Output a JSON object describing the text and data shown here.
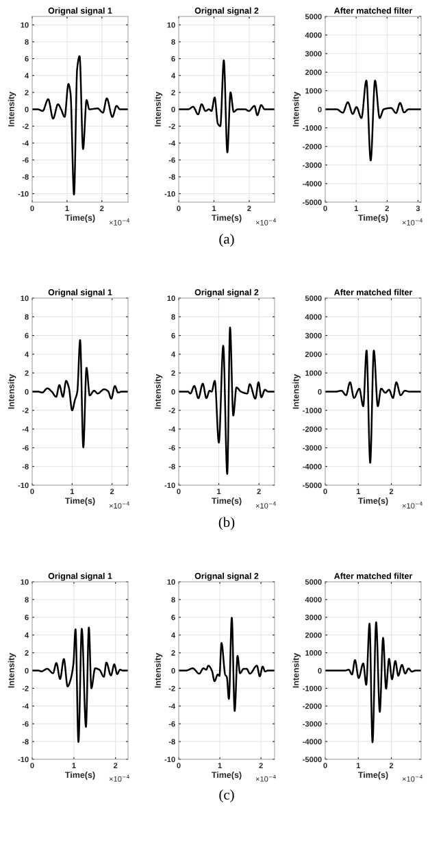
{
  "chart_data": [
    {
      "type": "line",
      "title": "Orignal signal 1",
      "xlabel": "Time(s)",
      "ylabel": "Intensity",
      "xlim": [
        0,
        2.75
      ],
      "xticks": [
        0,
        1,
        2
      ],
      "ylim": [
        -11,
        11
      ],
      "yticks": [
        -10,
        -8,
        -6,
        -4,
        -2,
        0,
        2,
        4,
        6,
        8,
        10
      ],
      "grid": true,
      "annotations": [
        "×10$^{−4}$"
      ],
      "x": [
        0,
        0.16,
        0.3,
        0.46,
        0.6,
        0.74,
        0.83,
        0.93,
        1.04,
        1.1,
        1.2,
        1.29,
        1.36,
        1.46,
        1.56,
        1.64,
        1.88,
        1.99,
        2.03,
        2.14,
        2.3,
        2.42,
        2.52,
        2.75
      ],
      "series": [
        {
          "color": "#000000",
          "values": [
            0,
            0,
            -0.2,
            1.2,
            -1.1,
            0.6,
            0,
            -0.9,
            3.0,
            1.9,
            -10.1,
            4.8,
            6.3,
            -4.7,
            1.1,
            0,
            0.1,
            -0.3,
            -0.4,
            1.3,
            -0.9,
            0.4,
            0,
            0
          ]
        }
      ]
    },
    {
      "type": "line",
      "title": "Orignal signal 2",
      "xlabel": "Time(s)",
      "ylabel": "Intensity",
      "xlim": [
        0,
        2.72
      ],
      "xticks": [
        0,
        1,
        2
      ],
      "ylim": [
        -11,
        11
      ],
      "yticks": [
        -10,
        -8,
        -6,
        -4,
        -2,
        0,
        2,
        4,
        6,
        8,
        10
      ],
      "grid": true,
      "annotations": [
        "×10$^{−4}$",
        "(a)"
      ],
      "x": [
        0,
        0.27,
        0.41,
        0.55,
        0.65,
        0.76,
        0.86,
        0.93,
        1.02,
        1.11,
        1.18,
        1.28,
        1.38,
        1.47,
        1.56,
        1.67,
        1.88,
        1.99,
        2.15,
        2.23,
        2.34,
        2.44,
        2.72
      ],
      "series": [
        {
          "color": "#000000",
          "values": [
            0,
            0,
            0.3,
            -0.6,
            0.6,
            -0.2,
            0,
            -0.2,
            1.4,
            -1.7,
            -2.0,
            5.8,
            -5.1,
            2.0,
            -0.3,
            0,
            0,
            -0.2,
            0.4,
            -0.7,
            0.5,
            0,
            0
          ]
        }
      ]
    },
    {
      "type": "line",
      "title": "After matched filter",
      "xlabel": "Time(s)",
      "ylabel": "Intensity",
      "xlim": [
        0,
        3.1
      ],
      "xticks": [
        0,
        1,
        2,
        3
      ],
      "ylim": [
        -5000,
        5000
      ],
      "yticks": [
        -5000,
        -4000,
        -3000,
        -2000,
        -1000,
        0,
        1000,
        2000,
        3000,
        4000,
        5000
      ],
      "grid": true,
      "annotations": [
        "×10$^{−4}$"
      ],
      "x": [
        0,
        0.37,
        0.57,
        0.73,
        0.89,
        1.01,
        1.17,
        1.33,
        1.47,
        1.61,
        1.76,
        1.89,
        2.13,
        2.29,
        2.42,
        2.55,
        2.69,
        3.1
      ],
      "series": [
        {
          "color": "#000000",
          "values": [
            0,
            0,
            -180,
            380,
            -250,
            120,
            -470,
            1550,
            -2750,
            1550,
            -470,
            0,
            70,
            -200,
            340,
            -170,
            0,
            0
          ]
        }
      ]
    },
    {
      "type": "line",
      "title": "Orignal signal 1",
      "xlabel": "Time(s)",
      "ylabel": "Intensity",
      "xlim": [
        0,
        2.4
      ],
      "xticks": [
        0,
        1,
        2
      ],
      "ylim": [
        -10,
        10
      ],
      "yticks": [
        -10,
        -8,
        -6,
        -4,
        -2,
        0,
        2,
        4,
        6,
        8,
        10
      ],
      "grid": true,
      "annotations": [
        "×10$^{−4}$"
      ],
      "x": [
        0,
        0.15,
        0.25,
        0.38,
        0.49,
        0.6,
        0.68,
        0.77,
        0.85,
        0.92,
        1.0,
        1.07,
        1.13,
        1.2,
        1.28,
        1.36,
        1.44,
        1.55,
        1.64,
        1.8,
        1.9,
        1.98,
        2.07,
        2.15,
        2.24,
        2.4
      ],
      "series": [
        {
          "color": "#000000",
          "values": [
            0,
            0,
            -0.1,
            0.35,
            0,
            -0.55,
            0.7,
            -0.55,
            1.15,
            0.4,
            -2.0,
            -0.9,
            0,
            5.5,
            -5.95,
            2.55,
            -0.4,
            0.1,
            -0.2,
            0.25,
            0.05,
            -0.75,
            0.6,
            -0.1,
            0,
            0
          ]
        }
      ]
    },
    {
      "type": "line",
      "title": "Orignal signal 2",
      "xlabel": "Time(s)",
      "ylabel": "Intensity",
      "xlim": [
        0,
        2.39
      ],
      "xticks": [
        0,
        1,
        2
      ],
      "ylim": [
        -10,
        10
      ],
      "yticks": [
        -10,
        -8,
        -6,
        -4,
        -2,
        0,
        2,
        4,
        6,
        8,
        10
      ],
      "grid": true,
      "annotations": [
        "×10$^{−4}$",
        "(b)"
      ],
      "x": [
        0,
        0.23,
        0.29,
        0.39,
        0.49,
        0.6,
        0.69,
        0.77,
        0.82,
        0.9,
        1.0,
        1.11,
        1.21,
        1.28,
        1.36,
        1.44,
        1.55,
        1.71,
        1.77,
        1.91,
        1.99,
        2.06,
        2.15,
        2.23,
        2.39
      ],
      "series": [
        {
          "color": "#000000",
          "values": [
            0,
            0,
            -0.2,
            0.6,
            -0.7,
            0.85,
            -0.7,
            0.1,
            0,
            1.15,
            -5.45,
            4.9,
            -8.8,
            6.85,
            -2.55,
            0.45,
            0,
            -0.2,
            0.8,
            -0.75,
            1.0,
            -0.6,
            0.2,
            0,
            0
          ]
        }
      ]
    },
    {
      "type": "line",
      "title": "After matched filter",
      "xlabel": "Time(s)",
      "ylabel": "Intensity",
      "xlim": [
        0,
        2.9
      ],
      "xticks": [
        0,
        1,
        2
      ],
      "ylim": [
        -5000,
        5000
      ],
      "yticks": [
        -5000,
        -4000,
        -3000,
        -2000,
        -1000,
        0,
        1000,
        2000,
        3000,
        4000,
        5000
      ],
      "grid": true,
      "annotations": [
        "×10$^{−4}$"
      ],
      "x": [
        0,
        0.32,
        0.49,
        0.63,
        0.75,
        0.87,
        1.03,
        1.15,
        1.25,
        1.36,
        1.47,
        1.59,
        1.69,
        1.82,
        1.93,
        2.05,
        2.15,
        2.28,
        2.41,
        2.54,
        2.9
      ],
      "series": [
        {
          "color": "#000000",
          "values": [
            0,
            0,
            50,
            -190,
            500,
            -340,
            160,
            -780,
            2200,
            -3800,
            2200,
            -780,
            160,
            -60,
            100,
            -340,
            500,
            -190,
            50,
            0,
            0
          ]
        }
      ]
    },
    {
      "type": "line",
      "title": "Orignal signal 1",
      "xlabel": "Time(s)",
      "ylabel": "Intensity",
      "xlim": [
        0,
        2.3
      ],
      "xticks": [
        0,
        1,
        2
      ],
      "ylim": [
        -10,
        10
      ],
      "yticks": [
        -10,
        -8,
        -6,
        -4,
        -2,
        0,
        2,
        4,
        6,
        8,
        10
      ],
      "grid": true,
      "annotations": [
        "×10$^{−4}$"
      ],
      "x": [
        0,
        0.15,
        0.22,
        0.36,
        0.5,
        0.58,
        0.67,
        0.76,
        0.85,
        0.92,
        0.99,
        1.04,
        1.11,
        1.19,
        1.29,
        1.36,
        1.42,
        1.51,
        1.61,
        1.72,
        1.78,
        1.89,
        1.97,
        2.04,
        2.11,
        2.17,
        2.3
      ],
      "series": [
        {
          "color": "#000000",
          "values": [
            0,
            0,
            -0.1,
            0.2,
            -0.3,
            0.85,
            -0.95,
            1.3,
            -1.8,
            -1.05,
            0.8,
            4.65,
            -8.05,
            4.7,
            -6.35,
            4.85,
            -2.0,
            0.25,
            0.1,
            -0.7,
            0.9,
            -0.55,
            0.7,
            -0.4,
            0.1,
            0,
            0
          ]
        }
      ]
    },
    {
      "type": "line",
      "title": "Orignal signal 2",
      "xlabel": "Time(s)",
      "ylabel": "Intensity",
      "xlim": [
        0,
        2.33
      ],
      "xticks": [
        0,
        1,
        2
      ],
      "ylim": [
        -10,
        10
      ],
      "yticks": [
        -10,
        -8,
        -6,
        -4,
        -2,
        0,
        2,
        4,
        6,
        8,
        10
      ],
      "grid": true,
      "annotations": [
        "×10$^{−4}$",
        "(c)"
      ],
      "x": [
        0,
        0.18,
        0.34,
        0.5,
        0.6,
        0.67,
        0.72,
        0.81,
        0.87,
        0.95,
        0.99,
        1.04,
        1.13,
        1.17,
        1.22,
        1.29,
        1.36,
        1.43,
        1.49,
        1.58,
        1.65,
        1.73,
        1.9,
        1.97,
        2.04,
        2.1,
        2.17,
        2.31
      ],
      "series": [
        {
          "color": "#000000",
          "values": [
            0,
            0,
            0.25,
            -0.35,
            0.25,
            0.1,
            0.55,
            -0.05,
            -1.2,
            -0.45,
            -0.6,
            3.1,
            -0.45,
            -0.75,
            -3.2,
            5.95,
            -4.55,
            1.65,
            -0.3,
            0.2,
            0.2,
            -0.35,
            0.55,
            -0.65,
            0.45,
            -0.1,
            0,
            0
          ]
        }
      ]
    },
    {
      "type": "line",
      "title": "After matched filter",
      "xlabel": "Time(s)",
      "ylabel": "Intensity",
      "xlim": [
        0,
        2.9
      ],
      "xticks": [
        0,
        1,
        2
      ],
      "ylim": [
        -5000,
        5000
      ],
      "yticks": [
        -5000,
        -4000,
        -3000,
        -2000,
        -1000,
        0,
        1000,
        2000,
        3000,
        4000,
        5000
      ],
      "grid": true,
      "annotations": [
        "×10$^{−4}$"
      ],
      "x": [
        0,
        0.61,
        0.71,
        0.81,
        0.9,
        1.01,
        1.15,
        1.24,
        1.34,
        1.43,
        1.54,
        1.65,
        1.75,
        1.84,
        1.93,
        2.02,
        2.12,
        2.21,
        2.32,
        2.42,
        2.52,
        2.62,
        2.73,
        2.9
      ],
      "series": [
        {
          "color": "#000000",
          "values": [
            0,
            0,
            50,
            -220,
            590,
            -420,
            400,
            -800,
            2640,
            -4040,
            2720,
            -2330,
            1840,
            -1020,
            660,
            -490,
            540,
            -290,
            320,
            -170,
            120,
            -60,
            0,
            0
          ]
        }
      ]
    }
  ]
}
